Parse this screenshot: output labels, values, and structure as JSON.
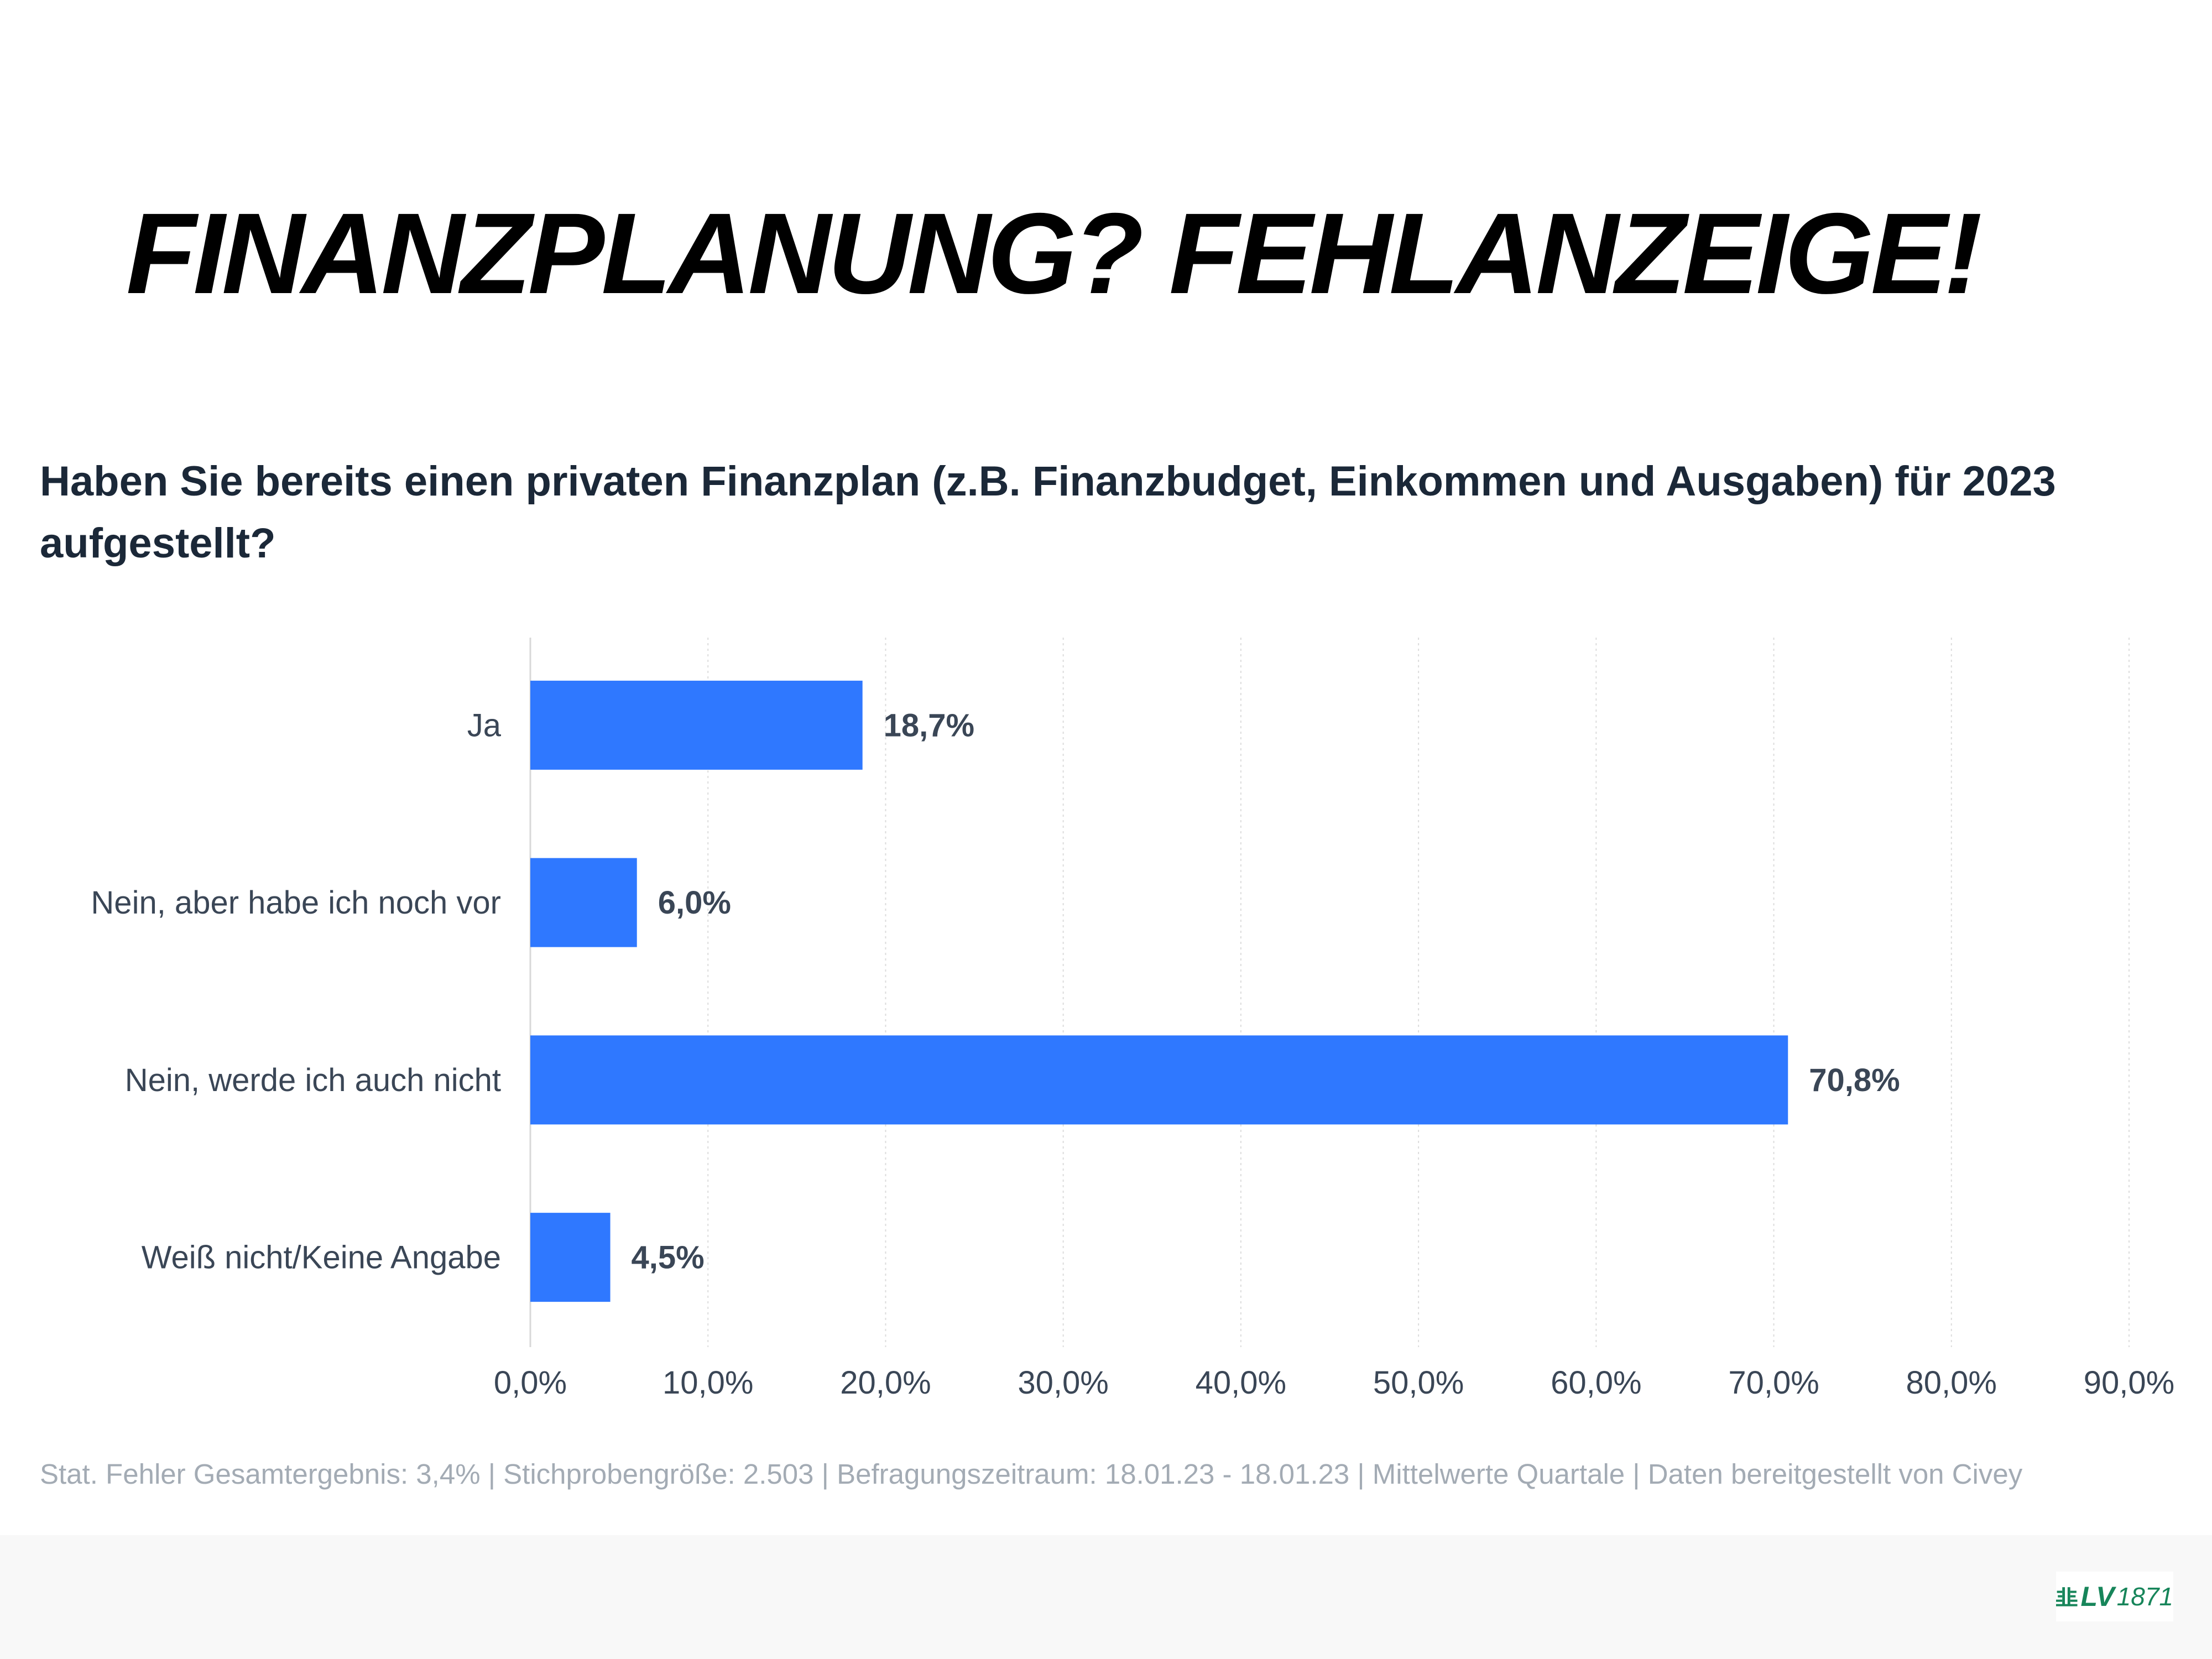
{
  "title": "FINANZPLANUNG? FEHLANZEIGE!",
  "chart_data": {
    "type": "bar",
    "orientation": "horizontal",
    "title": "Haben Sie bereits einen privaten Finanzplan (z.B. Finanzbudget, Einkommen und Ausgaben) für 2023 aufgestellt?",
    "categories": [
      "Ja",
      "Nein, aber habe ich noch vor",
      "Nein, werde ich auch nicht",
      "Weiß nicht/Keine Angabe"
    ],
    "values": [
      18.7,
      6.0,
      70.8,
      4.5
    ],
    "value_labels": [
      "18,7%",
      "6,0%",
      "70,8%",
      "4,5%"
    ],
    "xlim": [
      0,
      90
    ],
    "xticks": [
      "0,0%",
      "10,0%",
      "20,0%",
      "30,0%",
      "40,0%",
      "50,0%",
      "60,0%",
      "70,0%",
      "80,0%",
      "90,0%"
    ],
    "grid": true,
    "bar_color": "#2f78ff",
    "xlabel": "",
    "ylabel": ""
  },
  "footnote": "Stat. Fehler Gesamtergebnis: 3,4% | Stichprobengröße: 2.503 | Befragungszeitraum: 18.01.23 - 18.01.23 | Mittelwerte Quartale | Daten bereitgestellt von Civey",
  "logo": {
    "text": "LV",
    "year": "1871",
    "color": "#17855a"
  }
}
